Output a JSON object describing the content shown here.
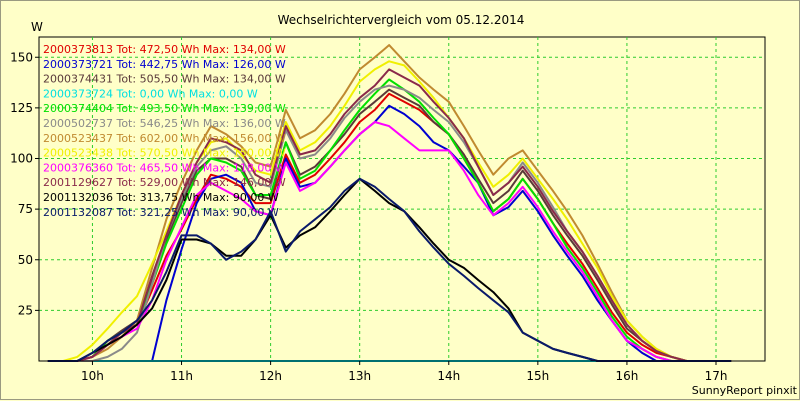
{
  "chart_data": {
    "type": "line",
    "title": "Wechselrichtervergleich vom 05.12.2014",
    "ylabel": "W",
    "xlabel": "",
    "ylim": [
      0,
      160
    ],
    "xlim": [
      9.4,
      17.55
    ],
    "yticks": [
      25,
      50,
      75,
      100,
      125,
      150
    ],
    "xticks": [
      10,
      11,
      12,
      13,
      14,
      15,
      16,
      17
    ],
    "xtick_labels": [
      "10h",
      "11h",
      "12h",
      "13h",
      "14h",
      "15h",
      "16h",
      "17h"
    ],
    "grid": true,
    "legend_position": "top-left",
    "footer": "SunnyReport pinxit",
    "x": [
      9.5,
      9.67,
      9.83,
      10,
      10.17,
      10.33,
      10.5,
      10.67,
      10.83,
      11,
      11.17,
      11.33,
      11.5,
      11.67,
      11.83,
      12,
      12.17,
      12.33,
      12.5,
      12.67,
      12.83,
      13,
      13.17,
      13.33,
      13.5,
      13.67,
      13.83,
      14,
      14.17,
      14.33,
      14.5,
      14.67,
      14.83,
      15,
      15.17,
      15.33,
      15.5,
      15.67,
      15.83,
      16,
      16.17,
      16.33,
      16.5,
      16.67,
      16.83,
      17,
      17.17
    ],
    "series": [
      {
        "label": "2000373813 Tot: 472,50 Wh Max: 134,00 W",
        "color": "#e00000",
        "values": [
          0,
          0,
          0,
          2,
          8,
          12,
          18,
          35,
          52,
          65,
          80,
          92,
          90,
          86,
          78,
          78,
          102,
          88,
          92,
          100,
          108,
          118,
          124,
          132,
          128,
          124,
          118,
          112,
          100,
          88,
          74,
          80,
          90,
          80,
          68,
          58,
          48,
          36,
          24,
          14,
          8,
          4,
          2,
          0,
          0,
          0,
          0
        ]
      },
      {
        "label": "2000373721 Tot: 442,75 Wh Max: 126,00 W",
        "color": "#0000d0",
        "values": [
          0,
          0,
          0,
          0,
          0,
          0,
          0,
          0,
          30,
          55,
          78,
          90,
          92,
          88,
          74,
          72,
          100,
          86,
          88,
          96,
          104,
          112,
          118,
          126,
          122,
          116,
          108,
          104,
          96,
          88,
          72,
          76,
          84,
          74,
          62,
          52,
          42,
          30,
          20,
          10,
          4,
          0,
          0,
          0,
          0,
          0,
          0
        ]
      },
      {
        "label": "2000374431 Tot: 505,50 Wh Max: 134,00 W",
        "color": "#5a3a3a",
        "values": [
          0,
          0,
          0,
          2,
          10,
          15,
          20,
          40,
          60,
          78,
          94,
          100,
          100,
          96,
          82,
          80,
          108,
          92,
          96,
          104,
          112,
          122,
          128,
          134,
          130,
          126,
          118,
          112,
          102,
          90,
          78,
          84,
          94,
          84,
          72,
          62,
          52,
          40,
          28,
          16,
          10,
          5,
          2,
          0,
          0,
          0,
          0
        ]
      },
      {
        "label": "2000373724 Tot: 0,00 Wh Max: 0,00 W",
        "color": "#00e0e0",
        "values": [
          0,
          0,
          0,
          0,
          0,
          0,
          0,
          0,
          0,
          0,
          0,
          0,
          0,
          0,
          0,
          0,
          0,
          0,
          0,
          0,
          0,
          0,
          0,
          0,
          0,
          0,
          0,
          0,
          0,
          0,
          0,
          0,
          0,
          0,
          0,
          0,
          0,
          0,
          0,
          0,
          0,
          0,
          0,
          0,
          0,
          0,
          0
        ]
      },
      {
        "label": "2000374404 Tot: 493,50 Wh Max: 139,00 W",
        "color": "#00e000",
        "values": [
          0,
          0,
          0,
          2,
          10,
          14,
          18,
          38,
          58,
          75,
          92,
          100,
          98,
          94,
          82,
          82,
          108,
          90,
          94,
          104,
          114,
          124,
          132,
          139,
          134,
          128,
          120,
          112,
          100,
          88,
          74,
          80,
          90,
          80,
          68,
          56,
          46,
          34,
          22,
          12,
          6,
          2,
          0,
          0,
          0,
          0,
          0
        ]
      },
      {
        "label": "2000502737 Tot: 546,25 Wh Max: 136,00 W",
        "color": "#8a8a8a",
        "values": [
          0,
          0,
          0,
          0,
          2,
          6,
          14,
          38,
          62,
          80,
          96,
          104,
          106,
          100,
          88,
          86,
          114,
          100,
          102,
          110,
          120,
          128,
          134,
          136,
          134,
          130,
          124,
          118,
          108,
          96,
          82,
          88,
          98,
          88,
          76,
          64,
          54,
          42,
          30,
          18,
          10,
          5,
          2,
          0,
          0,
          0,
          0
        ]
      },
      {
        "label": "2000523437 Tot: 602,00 Wh Max: 156,00 W",
        "color": "#c08a30",
        "values": [
          0,
          0,
          0,
          2,
          6,
          12,
          20,
          46,
          70,
          88,
          104,
          116,
          112,
          106,
          98,
          96,
          124,
          110,
          114,
          122,
          132,
          144,
          150,
          156,
          148,
          140,
          134,
          128,
          116,
          104,
          92,
          100,
          104,
          94,
          84,
          74,
          62,
          48,
          34,
          20,
          12,
          6,
          2,
          0,
          0,
          0,
          0
        ]
      },
      {
        "label": "2000523438 Tot: 570,50 Wh Max: 150,00 W",
        "color": "#f0f000",
        "values": [
          0,
          0,
          2,
          8,
          16,
          24,
          32,
          48,
          64,
          82,
          98,
          108,
          110,
          102,
          94,
          92,
          118,
          104,
          108,
          116,
          126,
          138,
          144,
          148,
          146,
          138,
          130,
          120,
          110,
          98,
          86,
          92,
          100,
          90,
          80,
          70,
          58,
          46,
          32,
          20,
          12,
          6,
          2,
          0,
          0,
          0,
          0
        ]
      },
      {
        "label": "2000376360 Tot: 465,50 Wh Max: 118,00 W",
        "color": "#ff00ff",
        "values": [
          0,
          0,
          0,
          2,
          8,
          12,
          16,
          30,
          50,
          66,
          82,
          88,
          84,
          80,
          74,
          72,
          98,
          84,
          88,
          96,
          104,
          112,
          118,
          116,
          110,
          104,
          104,
          104,
          94,
          82,
          72,
          78,
          86,
          76,
          64,
          54,
          44,
          32,
          20,
          10,
          6,
          2,
          0,
          0,
          0,
          0,
          0
        ]
      },
      {
        "label": "2001129627 Tot: 529,00 Wh Max: 146,00 W",
        "color": "#8a2a4a",
        "values": [
          0,
          0,
          0,
          2,
          8,
          14,
          18,
          42,
          62,
          82,
          98,
          110,
          108,
          104,
          92,
          88,
          116,
          102,
          104,
          112,
          122,
          130,
          136,
          144,
          140,
          136,
          128,
          120,
          110,
          96,
          82,
          88,
          96,
          86,
          74,
          64,
          54,
          42,
          30,
          18,
          10,
          5,
          2,
          0,
          0,
          0,
          0
        ]
      },
      {
        "label": "2001132036 Tot: 313,75 Wh Max: 90,00 W",
        "color": "#000000",
        "values": [
          0,
          0,
          0,
          4,
          8,
          12,
          18,
          26,
          40,
          60,
          60,
          58,
          52,
          52,
          60,
          72,
          56,
          62,
          66,
          74,
          82,
          90,
          84,
          78,
          74,
          66,
          58,
          50,
          46,
          40,
          34,
          26,
          14,
          10,
          6,
          4,
          2,
          0,
          0,
          0,
          0,
          0,
          0,
          0,
          0,
          0,
          0
        ]
      },
      {
        "label": "2001132087 Tot: 321,25 Wh Max: 90,00 W",
        "color": "#0a1a6a",
        "values": [
          0,
          0,
          0,
          4,
          10,
          14,
          20,
          30,
          44,
          62,
          62,
          58,
          50,
          54,
          60,
          74,
          54,
          64,
          70,
          76,
          84,
          90,
          86,
          80,
          74,
          64,
          56,
          48,
          42,
          36,
          30,
          24,
          14,
          10,
          6,
          4,
          2,
          0,
          0,
          0,
          0,
          0,
          0,
          0,
          0,
          0,
          0
        ]
      }
    ]
  }
}
